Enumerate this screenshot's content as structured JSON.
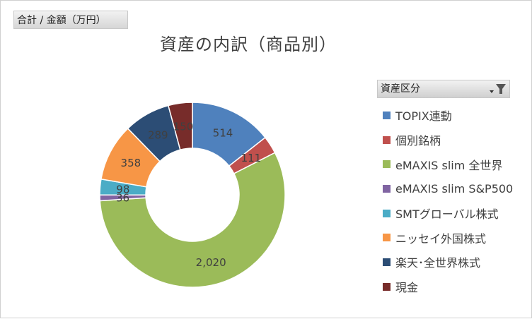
{
  "field_button": "合計 / 金額（万円）",
  "legend_header": "資産区分",
  "icons": {
    "filter": "dropdown-filter-icon"
  },
  "chart_data": {
    "type": "pie",
    "variant": "donut",
    "title": "資産の内訳（商品別）",
    "legend_placement": "right",
    "categories": [
      "TOPIX連動",
      "個別銘柄",
      "eMAXIS slim 全世界",
      "eMAXIS slim S&P500",
      "SMTグローバル株式",
      "ニッセイ外国株式",
      "楽天･全世界株式",
      "現金"
    ],
    "values": [
      514,
      111,
      2020,
      36,
      98,
      358,
      289,
      150
    ],
    "labels": [
      "514",
      "111",
      "2,020",
      "36",
      "98",
      "358",
      "289",
      "150"
    ],
    "colors": [
      "#4F81BD",
      "#C0504D",
      "#9BBB59",
      "#8064A2",
      "#4BACC6",
      "#F79646",
      "#2C4D75",
      "#772C2A"
    ]
  }
}
